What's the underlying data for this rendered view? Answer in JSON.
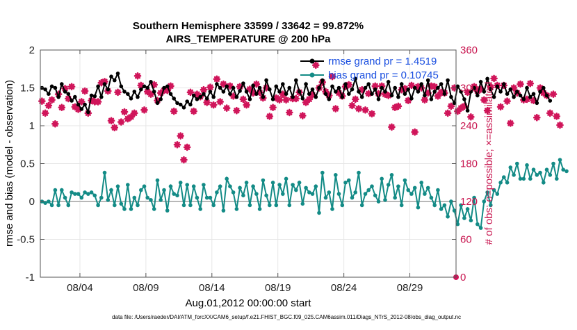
{
  "chart_data": {
    "type": "line",
    "title": "Southern Hemisphere 33599 / 33642 = 99.872%",
    "subtitle": "AIRS_TEMPERATURE @ 200 hPa",
    "xlabel": "Aug.01,2012 00:00:00 start",
    "ylabel": "rmse and bias (model - observation)",
    "y2label": "# of obs: o=possible; ×=assimilated",
    "footer": "data file: /Users/raeder/DAI/ATM_forcXX/CAM6_setup/f.e21.FHIST_BGC.f09_025.CAM6assim.011/Diags_NTrS_2012-08/obs_diag_output.nc",
    "x_range_days": [
      1.0,
      32.5
    ],
    "ylim": [
      -1,
      2
    ],
    "y_ticks": [
      -1,
      -0.5,
      0,
      0.5,
      1,
      1.5,
      2
    ],
    "y_tick_labels": [
      "-1",
      "-0.5",
      "0",
      "0.5",
      "1",
      "1.5",
      "2"
    ],
    "y2lim": [
      0,
      360
    ],
    "y2_ticks": [
      0,
      60,
      120,
      180,
      240,
      300,
      360
    ],
    "y2_tick_labels": [
      "0",
      "60",
      "120",
      "180",
      "240",
      "300",
      "360"
    ],
    "x_ticks": [
      4,
      9,
      14,
      19,
      24,
      29
    ],
    "x_tick_labels": [
      "08/04",
      "08/09",
      "08/14",
      "08/19",
      "08/24",
      "08/29"
    ],
    "x_step_days": 0.25,
    "x_start_day": 1.125,
    "grid": true,
    "legend_position": "top-right",
    "colors": {
      "rmse": "#000000",
      "bias": "#138b86",
      "obs": "#d0155a",
      "zero_line": "#b8b8b8",
      "legend_text": "#1a4fe0"
    },
    "series": [
      {
        "name": "rmse grand pr = 1.4519",
        "axis": "left",
        "values": [
          1.5,
          1.48,
          1.42,
          1.52,
          1.5,
          1.38,
          1.55,
          1.45,
          1.42,
          1.33,
          1.38,
          1.28,
          1.22,
          1.28,
          1.18,
          1.4,
          1.39,
          1.52,
          1.38,
          1.55,
          1.48,
          1.65,
          1.6,
          1.69,
          1.52,
          1.45,
          1.42,
          1.36,
          1.45,
          1.38,
          1.48,
          1.52,
          1.5,
          1.58,
          1.45,
          1.3,
          1.35,
          1.5,
          1.52,
          1.42,
          1.36,
          1.3,
          1.28,
          1.24,
          1.32,
          1.28,
          1.4,
          1.35,
          1.38,
          1.42,
          1.36,
          1.45,
          1.38,
          1.55,
          1.5,
          1.45,
          1.52,
          1.42,
          1.5,
          1.38,
          1.46,
          1.56,
          1.45,
          1.35,
          1.53,
          1.42,
          1.5,
          1.38,
          1.6,
          1.48,
          1.35,
          1.52,
          1.45,
          1.55,
          1.42,
          1.5,
          1.38,
          1.6,
          1.45,
          1.36,
          1.55,
          1.42,
          1.48,
          1.38,
          1.5,
          1.6,
          1.42,
          1.35,
          1.52,
          1.45,
          1.5,
          1.38,
          1.55,
          1.42,
          1.48,
          1.62,
          1.45,
          1.38,
          1.5,
          1.55,
          1.42,
          1.48,
          1.35,
          1.5,
          1.45,
          1.58,
          1.4,
          1.5,
          1.38,
          1.55,
          1.42,
          1.48,
          1.36,
          1.5,
          1.45,
          1.55,
          1.4,
          1.6,
          1.35,
          1.45,
          1.5,
          1.55,
          1.42,
          1.6,
          1.38,
          1.3,
          1.52,
          1.45,
          1.35,
          1.2,
          1.45,
          1.5,
          1.4,
          1.58,
          1.45,
          1.62,
          1.48,
          1.38,
          1.52,
          1.45,
          1.55,
          1.42,
          1.48,
          1.38,
          1.45,
          1.4,
          1.35,
          1.5,
          1.38,
          1.42,
          1.3,
          1.45,
          1.5,
          1.4,
          1.33
        ]
      },
      {
        "name": "bias grand pr = 0.10745",
        "axis": "left",
        "values": [
          0.0,
          -0.02,
          0.0,
          -0.05,
          0.15,
          -0.05,
          0.15,
          0.05,
          -0.05,
          0.12,
          0.1,
          0.1,
          0.05,
          0.12,
          0.1,
          0.12,
          0.08,
          -0.05,
          0.05,
          0.38,
          0.02,
          0.15,
          -0.05,
          0.2,
          -0.03,
          -0.1,
          0.22,
          -0.1,
          0.05,
          -0.05,
          0.15,
          0.2,
          0.05,
          0.02,
          -0.1,
          0.28,
          0.02,
          0.15,
          -0.12,
          0.2,
          0.1,
          0.08,
          0.25,
          -0.05,
          0.22,
          -0.05,
          0.2,
          0.05,
          -0.1,
          0.22,
          0.05,
          0.05,
          -0.05,
          0.12,
          0.2,
          -0.12,
          0.3,
          0.2,
          0.12,
          -0.1,
          0.18,
          0.08,
          0.25,
          -0.05,
          0.2,
          0.1,
          -0.1,
          0.28,
          0.08,
          -0.05,
          0.25,
          -0.05,
          0.22,
          0.1,
          0.3,
          -0.05,
          0.22,
          0.15,
          0.25,
          -0.03,
          0.18,
          0.12,
          0.1,
          0.2,
          -0.15,
          0.38,
          0.05,
          0.12,
          -0.1,
          0.35,
          0.1,
          -0.05,
          0.25,
          0.28,
          0.05,
          0.12,
          0.38,
          -0.05,
          0.1,
          0.15,
          0.2,
          0.08,
          0.0,
          0.3,
          0.02,
          0.22,
          0.35,
          0.05,
          0.2,
          -0.05,
          0.28,
          0.15,
          0.1,
          0.18,
          -0.08,
          0.25,
          0.1,
          0.18,
          0.05,
          -0.05,
          0.15,
          -0.1,
          -0.05,
          -0.2,
          0.0,
          -0.12,
          -0.3,
          -0.05,
          -0.22,
          -0.1,
          -0.25,
          0.05,
          -0.3,
          -0.35,
          0.0,
          0.12,
          -0.05,
          0.15,
          0.1,
          0.25,
          0.32,
          0.25,
          0.45,
          0.35,
          0.5,
          0.3,
          0.3,
          0.48,
          0.3,
          0.42,
          0.35,
          0.38,
          0.25,
          0.42,
          0.35,
          0.5,
          0.3,
          0.55,
          0.42,
          0.4
        ]
      },
      {
        "name": "# of obs assimilated",
        "axis": "right",
        "values": [
          279,
          260,
          272,
          281,
          243,
          290,
          269,
          299,
          283,
          302,
          270,
          266,
          278,
          295,
          260,
          280,
          278,
          278,
          308,
          310,
          295,
          248,
          237,
          293,
          246,
          262,
          251,
          254,
          260,
          319,
          304,
          265,
          294,
          290,
          305,
          280,
          292,
          296,
          296,
          303,
          263,
          210,
          224,
          186,
          206,
          293,
          263,
          290,
          286,
          297,
          277,
          301,
          273,
          314,
          278,
          306,
          268,
          303,
          287,
          264,
          302,
          282,
          273,
          298,
          292,
          306,
          293,
          284,
          300,
          255,
          269,
          284,
          281,
          290,
          281,
          261,
          283,
          283,
          293,
          256,
          277,
          282,
          289,
          336,
          300,
          309,
          294,
          288,
          318,
          267,
          292,
          287,
          302,
          305,
          272,
          282,
          267,
          297,
          265,
          291,
          259,
          303,
          291,
          303,
          290,
          288,
          238,
          269,
          271,
          297,
          299,
          280,
          304,
          230,
          302,
          300,
          281,
          292,
          303,
          302,
          287,
          293,
          292,
          260,
          271,
          300,
          263,
          268,
          271,
          293,
          254,
          302,
          295,
          298,
          281,
          264,
          301,
          315,
          304,
          270,
          304,
          279,
          244,
          300,
          292,
          306,
          281,
          282,
          307,
          280,
          253,
          300,
          292,
          288,
          260,
          290,
          255,
          241
        ]
      }
    ]
  }
}
